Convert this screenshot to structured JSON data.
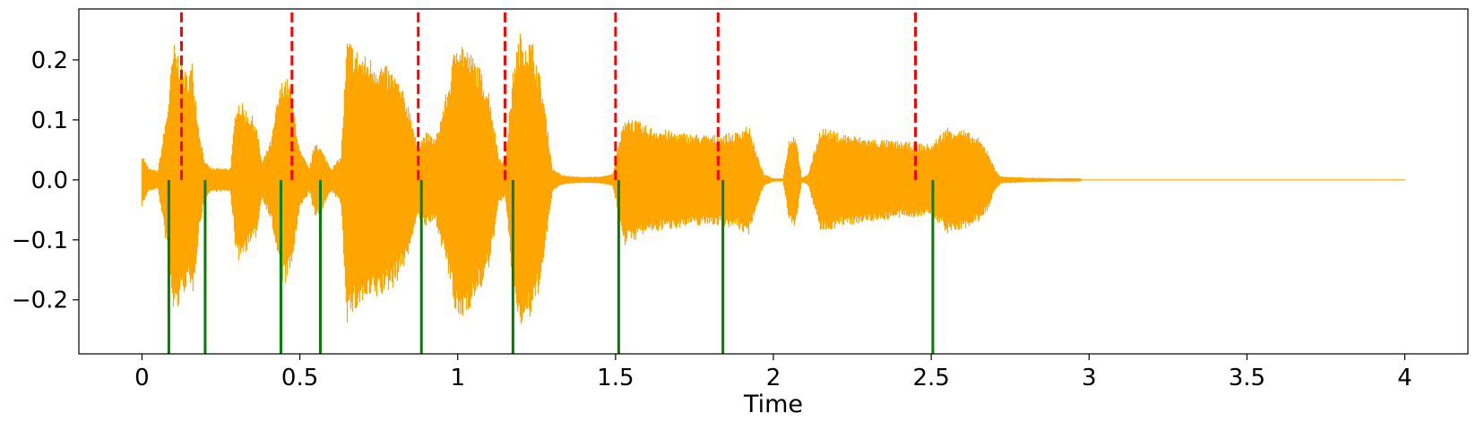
{
  "chart_data": {
    "type": "line",
    "title": "",
    "xlabel": "Time",
    "ylabel": "",
    "xlim": [
      -0.2,
      4.2
    ],
    "ylim": [
      -0.29,
      0.285
    ],
    "grid": false,
    "xticks": [
      0,
      0.5,
      1,
      1.5,
      2,
      2.5,
      3,
      3.5,
      4
    ],
    "xtick_labels": [
      "0",
      "0.5",
      "1",
      "1.5",
      "2",
      "2.5",
      "3",
      "3.5",
      "4"
    ],
    "yticks": [
      0.2,
      0.1,
      0.0,
      -0.1,
      -0.2
    ],
    "ytick_labels": [
      "0.2",
      "0.1",
      "0.0",
      "−0.1",
      "−0.2"
    ],
    "colors": {
      "waveform": "#FFA500",
      "reference_markers": "#FF0000",
      "detected_markers": "#008000"
    },
    "waveform_envelope": {
      "t": [
        0.0,
        0.02,
        0.05,
        0.08,
        0.1,
        0.12,
        0.14,
        0.16,
        0.18,
        0.2,
        0.22,
        0.25,
        0.28,
        0.3,
        0.33,
        0.36,
        0.38,
        0.41,
        0.43,
        0.45,
        0.47,
        0.5,
        0.53,
        0.55,
        0.58,
        0.6,
        0.63,
        0.65,
        0.68,
        0.7,
        0.75,
        0.8,
        0.85,
        0.87,
        0.9,
        0.93,
        0.97,
        1.0,
        1.03,
        1.06,
        1.1,
        1.13,
        1.15,
        1.18,
        1.2,
        1.24,
        1.27,
        1.3,
        1.33,
        1.37,
        1.4,
        1.45,
        1.49,
        1.51,
        1.53,
        1.6,
        1.7,
        1.8,
        1.88,
        1.92,
        1.95,
        1.97,
        2.0,
        2.03,
        2.05,
        2.07,
        2.09,
        2.11,
        2.15,
        2.2,
        2.3,
        2.4,
        2.5,
        2.55,
        2.6,
        2.65,
        2.68,
        2.7,
        2.72,
        2.8,
        2.9,
        2.97,
        2.98,
        4.0
      ],
      "env": [
        0.045,
        0.02,
        0.015,
        0.12,
        0.23,
        0.21,
        0.18,
        0.2,
        0.09,
        0.03,
        0.02,
        0.02,
        0.02,
        0.14,
        0.12,
        0.1,
        0.03,
        0.07,
        0.14,
        0.18,
        0.16,
        0.05,
        0.02,
        0.07,
        0.04,
        0.02,
        0.04,
        0.24,
        0.22,
        0.21,
        0.2,
        0.18,
        0.12,
        0.06,
        0.08,
        0.07,
        0.16,
        0.25,
        0.22,
        0.2,
        0.15,
        0.04,
        0.03,
        0.21,
        0.25,
        0.23,
        0.15,
        0.02,
        0.008,
        0.006,
        0.005,
        0.006,
        0.01,
        0.06,
        0.11,
        0.09,
        0.08,
        0.075,
        0.08,
        0.095,
        0.04,
        0.01,
        0.003,
        0.003,
        0.07,
        0.08,
        0.003,
        0.01,
        0.09,
        0.08,
        0.07,
        0.065,
        0.06,
        0.09,
        0.085,
        0.07,
        0.05,
        0.02,
        0.006,
        0.004,
        0.003,
        0.003,
        0.0,
        0.0
      ]
    },
    "reference_markers": {
      "style": "dashed",
      "x": [
        0.125,
        0.475,
        0.875,
        1.15,
        1.5,
        1.825,
        2.45
      ],
      "y_range": [
        0.0,
        0.285
      ]
    },
    "detected_markers": {
      "style": "solid",
      "x": [
        0.085,
        0.2,
        0.44,
        0.565,
        0.885,
        1.175,
        1.51,
        1.84,
        2.505
      ],
      "y_range": [
        -0.29,
        0.0
      ]
    }
  }
}
